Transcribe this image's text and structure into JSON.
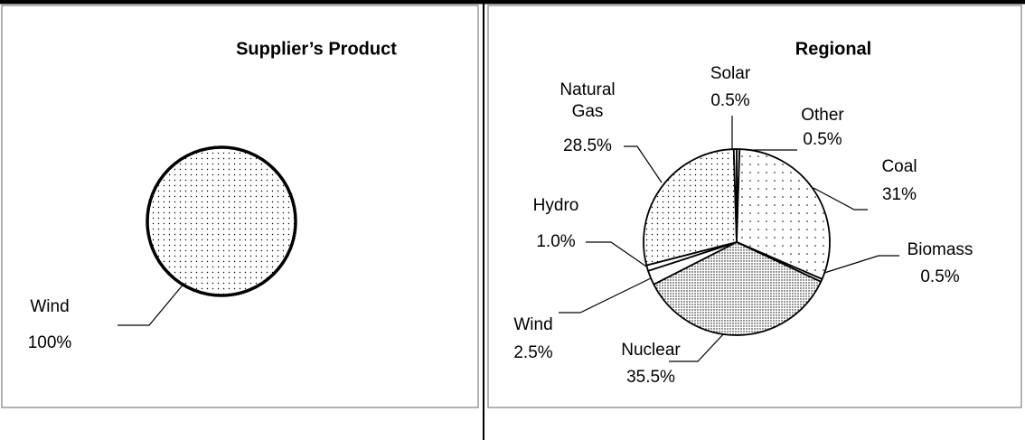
{
  "chart_data": [
    {
      "type": "pie",
      "title": "Supplier’s Product",
      "categories": [
        "Wind"
      ],
      "values": [
        100
      ],
      "value_labels": [
        "100%"
      ],
      "patterns": [
        "medium"
      ]
    },
    {
      "type": "pie",
      "title": "Regional",
      "categories": [
        "Other",
        "Coal",
        "Biomass",
        "Nuclear",
        "Wind",
        "Hydro",
        "Natural Gas",
        "Solar"
      ],
      "values": [
        0.5,
        31,
        0.5,
        35.5,
        2.5,
        1.0,
        28.5,
        0.5
      ],
      "value_labels": [
        "0.5%",
        "31%",
        "0.5%",
        "35.5%",
        "2.5%",
        "1.0%",
        "28.5%",
        "0.5%"
      ],
      "patterns": [
        "none",
        "sparse",
        "none",
        "dense",
        "none",
        "none",
        "medium",
        "none"
      ]
    }
  ]
}
